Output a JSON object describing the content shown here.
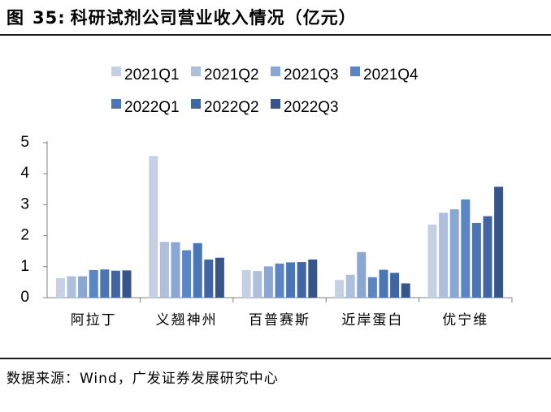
{
  "figure": {
    "label": "图",
    "number": "35:",
    "title": "科研试剂公司营业收入情况（亿元）"
  },
  "source": {
    "label": "数据来源：",
    "text": "Wind，广发证券发展研究中心"
  },
  "chart_data": {
    "type": "bar",
    "title": "科研试剂公司营业收入情况（亿元）",
    "categories": [
      "阿拉丁",
      "义翘神州",
      "百普赛斯",
      "近岸蛋白",
      "优宁维"
    ],
    "series": [
      {
        "name": "2021Q1",
        "color": "#c5d1e3",
        "values": [
          0.63,
          4.57,
          0.89,
          0.57,
          2.36
        ]
      },
      {
        "name": "2021Q2",
        "color": "#adbfdb",
        "values": [
          0.69,
          1.8,
          0.86,
          0.74,
          2.74
        ]
      },
      {
        "name": "2021Q3",
        "color": "#8aa6d3",
        "values": [
          0.69,
          1.79,
          1.01,
          1.47,
          2.85
        ]
      },
      {
        "name": "2021Q4",
        "color": "#5b86c6",
        "values": [
          0.89,
          1.53,
          1.1,
          0.66,
          3.17
        ]
      },
      {
        "name": "2022Q1",
        "color": "#4a76b6",
        "values": [
          0.91,
          1.76,
          1.14,
          0.9,
          2.41
        ]
      },
      {
        "name": "2022Q2",
        "color": "#3f66a2",
        "values": [
          0.87,
          1.23,
          1.15,
          0.8,
          2.63
        ]
      },
      {
        "name": "2022Q3",
        "color": "#36568a",
        "values": [
          0.88,
          1.29,
          1.23,
          0.46,
          3.58
        ]
      }
    ],
    "y_ticks": [
      "0",
      "1",
      "2",
      "3",
      "4",
      "5"
    ],
    "ylim": [
      0,
      5
    ],
    "legend_position": "top",
    "grid": false
  }
}
